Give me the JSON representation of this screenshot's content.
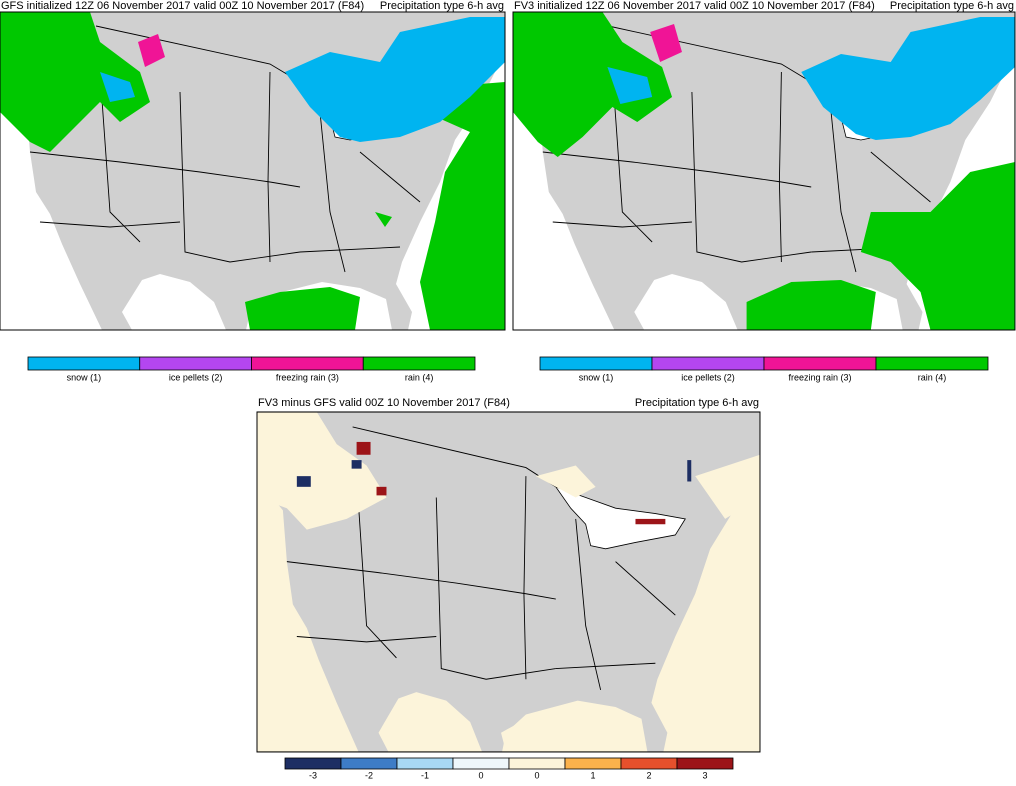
{
  "panels": [
    {
      "title_left": "GFS initialized 12Z 06 November 2017 valid 00Z 10 November 2017 (F84)",
      "title_right": "Precipitation type 6-h avg",
      "legend": {
        "items": [
          {
            "label": "snow (1)",
            "color": "#00b4f0"
          },
          {
            "label": "ice pellets (2)",
            "color": "#b446f0"
          },
          {
            "label": "freezing rain (3)",
            "color": "#f01496"
          },
          {
            "label": "rain (4)",
            "color": "#00c800"
          }
        ]
      }
    },
    {
      "title_left": "FV3 initialized 12Z 06 November 2017 valid 00Z 10 November 2017 (F84)",
      "title_right": "Precipitation type 6-h avg",
      "legend": {
        "items": [
          {
            "label": "snow (1)",
            "color": "#00b4f0"
          },
          {
            "label": "ice pellets (2)",
            "color": "#b446f0"
          },
          {
            "label": "freezing rain (3)",
            "color": "#f01496"
          },
          {
            "label": "rain (4)",
            "color": "#00c800"
          }
        ]
      }
    },
    {
      "title_left": "FV3 minus GFS valid 00Z 10 November 2017 (F84)",
      "title_right": "Precipitation type 6-h avg",
      "legend": {
        "items": [
          {
            "label": "-3",
            "color": "#1d2e63"
          },
          {
            "label": "-2",
            "color": "#3d7cc6"
          },
          {
            "label": "-1",
            "color": "#a8d8f4"
          },
          {
            "label": "0",
            "color": "#eef7fb"
          },
          {
            "label": "0",
            "color": "#fcf4da"
          },
          {
            "label": "1",
            "color": "#fbb24c"
          },
          {
            "label": "2",
            "color": "#e6502c"
          },
          {
            "label": "3",
            "color": "#9c1418"
          }
        ]
      }
    }
  ]
}
